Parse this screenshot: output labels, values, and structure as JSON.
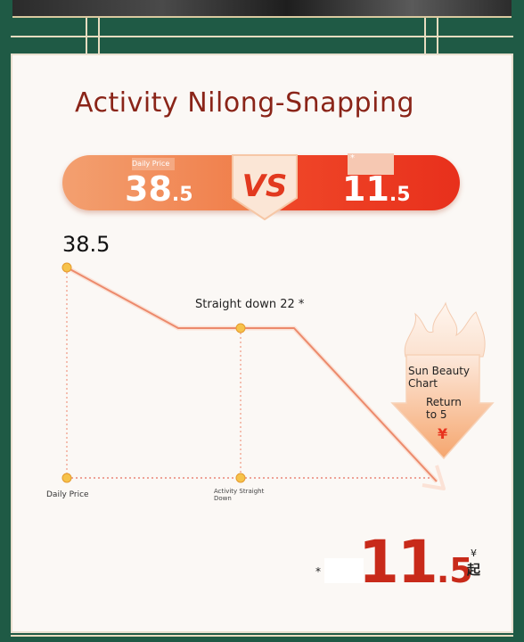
{
  "header": {
    "title": "Activity Nilong-Snapping"
  },
  "comparison": {
    "left_tag": "Daily Price",
    "left_int": "38",
    "left_dec": ".5",
    "vs_label": "VS",
    "right_tag": "*",
    "right_int": "11",
    "right_dec": ".5"
  },
  "chart": {
    "start_value": "38.5",
    "mid_label": "Straight down 22 *",
    "x_label_start": "Daily Price",
    "x_label_mid_line1": "Activity Straight",
    "x_label_mid_line2": "Down",
    "arrow_text_line1": "Sun Beauty",
    "arrow_text_line2": "Chart",
    "arrow_text_line3": "Return",
    "arrow_text_line4": "to 5",
    "arrow_symbol": "¥"
  },
  "final": {
    "star": "*",
    "price_int": "11",
    "price_dec": ".5",
    "currency": "¥",
    "suffix": "起"
  },
  "colors": {
    "title": "#8a2418",
    "price_red": "#c82a1a",
    "background_green": "#1f5a45"
  }
}
